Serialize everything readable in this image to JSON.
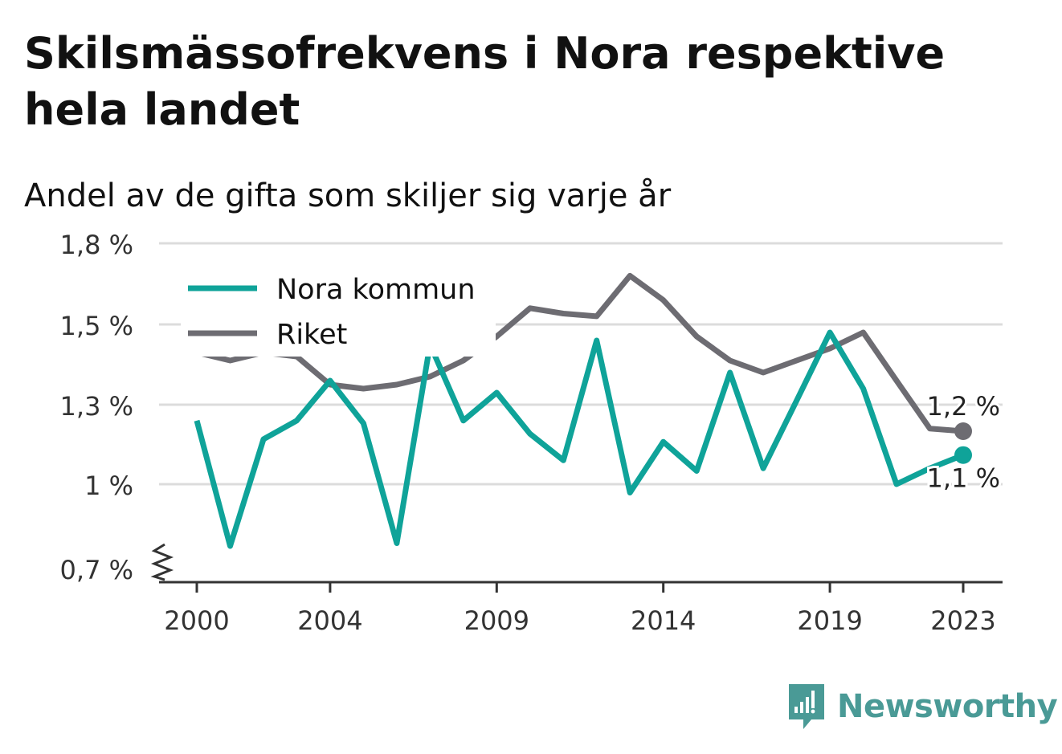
{
  "title": "Skilsmässofrekvens i Nora respektive hela landet",
  "subtitle": "Andel av de gifta som skiljer sig varje år",
  "brand": {
    "name": "Newsworthy",
    "logo_icon": "bar-chart-speech-bubble-icon",
    "color": "#4a9a96"
  },
  "chart_data": {
    "type": "line",
    "x": [
      2000,
      2001,
      2002,
      2003,
      2004,
      2005,
      2006,
      2007,
      2008,
      2009,
      2010,
      2011,
      2012,
      2013,
      2014,
      2015,
      2016,
      2017,
      2018,
      2019,
      2020,
      2021,
      2022,
      2023
    ],
    "x_tick_labels": [
      "2000",
      "2004",
      "2009",
      "2014",
      "2019",
      "2023"
    ],
    "y_ticks": [
      0.7,
      1.0,
      1.3,
      1.5,
      1.8
    ],
    "y_tick_labels": [
      "0,7 %",
      "1 %",
      "1,3 %",
      "1,5 %",
      "1,8 %"
    ],
    "axis_break": true,
    "grid": true,
    "legend_position": "top-left",
    "series": [
      {
        "name": "Nora kommun",
        "color": "#0fa399",
        "values": [
          1.24,
          0.78,
          1.17,
          1.24,
          1.36,
          1.23,
          0.79,
          1.45,
          1.24,
          1.33,
          1.19,
          1.09,
          1.46,
          0.97,
          1.16,
          1.05,
          1.38,
          1.06,
          1.31,
          1.48,
          1.34,
          1.0,
          1.06,
          1.11
        ],
        "end_label": "1,1 %"
      },
      {
        "name": "Riket",
        "color": "#6d6c72",
        "values": [
          1.43,
          1.41,
          1.43,
          1.42,
          1.35,
          1.34,
          1.35,
          1.37,
          1.41,
          1.47,
          1.56,
          1.54,
          1.53,
          1.68,
          1.59,
          1.47,
          1.41,
          1.38,
          1.41,
          1.44,
          1.48,
          1.36,
          1.21,
          1.2
        ],
        "end_label": "1,2 %"
      }
    ]
  }
}
